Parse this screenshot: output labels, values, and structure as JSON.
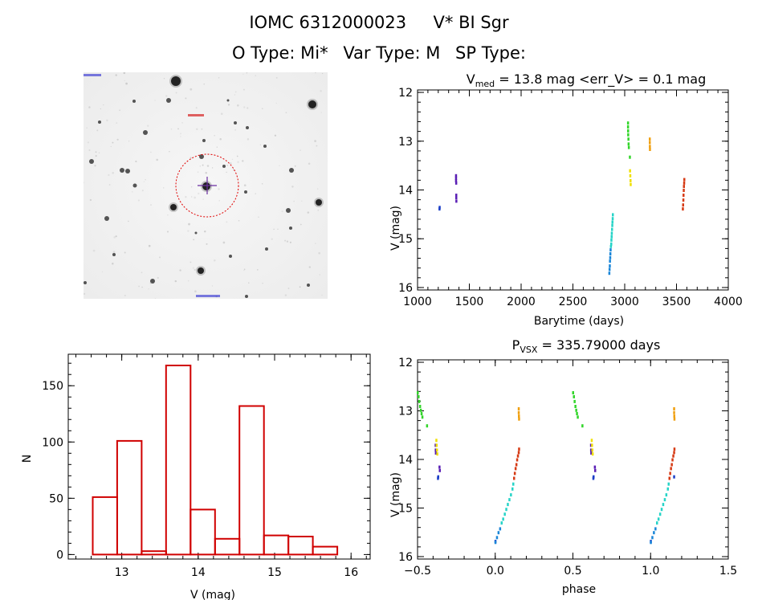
{
  "header": {
    "star_id": "IOMC 6312000023",
    "star_name": "V* BI Sgr",
    "o_type": "O Type: Mi*",
    "var_type": "Var Type: M",
    "sp_type": "SP Type:"
  },
  "image_panel": {
    "marker_colors": {
      "circle": "#e00000",
      "cross": "#6b2fa0",
      "label": "#d00000",
      "corner_text": "#0000cc"
    }
  },
  "chart_data": [
    {
      "type": "scatter",
      "title": "V_med = 13.8 mag <err_V> = 0.1 mag",
      "title_parts": {
        "v": "V",
        "sub": "med",
        "rest": " = 13.8 mag <err_V> = 0.1 mag"
      },
      "xlabel": "Barytime (days)",
      "ylabel": "V (mag)",
      "xlim": [
        1000,
        4000
      ],
      "ylim": [
        16.05,
        11.95
      ],
      "xticks": [
        "1000",
        "1500",
        "2000",
        "2500",
        "3000",
        "3500",
        "4000"
      ],
      "yticks": [
        "12",
        "13",
        "14",
        "15",
        "16"
      ],
      "series": [
        {
          "color": "#1c3fc8",
          "points": [
            [
              1210,
              14.38
            ],
            [
              1212,
              14.35
            ]
          ]
        },
        {
          "color": "#5a1fb5",
          "points": [
            [
              1370,
              13.7
            ],
            [
              1370,
              13.75
            ],
            [
              1370,
              13.8
            ],
            [
              1371,
              13.85
            ],
            [
              1372,
              14.1
            ],
            [
              1372,
              14.15
            ],
            [
              1373,
              14.22
            ]
          ]
        },
        {
          "color": "#1a86d8",
          "points": [
            [
              2850,
              15.7
            ],
            [
              2852,
              15.62
            ],
            [
              2854,
              15.55
            ],
            [
              2856,
              15.45
            ],
            [
              2858,
              15.38
            ],
            [
              2860,
              15.3
            ],
            [
              2862,
              15.22
            ]
          ]
        },
        {
          "color": "#27d4c8",
          "points": [
            [
              2865,
              15.15
            ],
            [
              2868,
              15.1
            ],
            [
              2870,
              15.02
            ],
            [
              2872,
              14.95
            ],
            [
              2874,
              14.88
            ],
            [
              2876,
              14.8
            ],
            [
              2878,
              14.72
            ],
            [
              2880,
              14.65
            ],
            [
              2882,
              14.58
            ],
            [
              2884,
              14.5
            ]
          ]
        },
        {
          "color": "#32d62a",
          "points": [
            [
              3030,
              12.62
            ],
            [
              3030,
              12.7
            ],
            [
              3031,
              12.78
            ],
            [
              3032,
              12.86
            ],
            [
              3034,
              12.95
            ],
            [
              3036,
              13.05
            ],
            [
              3038,
              13.12
            ],
            [
              3048,
              13.32
            ]
          ]
        },
        {
          "color": "#f0e000",
          "points": [
            [
              3050,
              13.6
            ],
            [
              3052,
              13.7
            ],
            [
              3054,
              13.8
            ],
            [
              3056,
              13.88
            ]
          ]
        },
        {
          "color": "#f0a010",
          "points": [
            [
              3240,
              12.95
            ],
            [
              3240,
              13.02
            ],
            [
              3241,
              13.1
            ],
            [
              3242,
              13.16
            ]
          ]
        },
        {
          "color": "#d63a14",
          "points": [
            [
              3560,
              14.38
            ],
            [
              3562,
              14.3
            ],
            [
              3564,
              14.2
            ],
            [
              3566,
              14.1
            ],
            [
              3568,
              14.0
            ],
            [
              3570,
              13.92
            ],
            [
              3572,
              13.85
            ],
            [
              3574,
              13.78
            ]
          ]
        }
      ]
    },
    {
      "type": "scatter",
      "title": "P_VSX = 335.79000 days",
      "title_parts": {
        "p": "P",
        "sub": "VSX",
        "rest": " = 335.79000 days"
      },
      "xlabel": "phase",
      "ylabel": "V (mag)",
      "xlim": [
        -0.5,
        1.5
      ],
      "ylim": [
        16.05,
        11.95
      ],
      "xticks": [
        "−0.5",
        "0.0",
        "0.5",
        "1.0",
        "1.5"
      ],
      "yticks": [
        "12",
        "13",
        "14",
        "15",
        "16"
      ],
      "series": [
        {
          "color": "#1c3fc8",
          "points": [
            [
              -0.37,
              14.38
            ],
            [
              -0.368,
              14.35
            ],
            [
              0.63,
              14.38
            ],
            [
              0.632,
              14.35
            ],
            [
              1.15,
              14.35
            ],
            [
              0.0,
              15.68
            ],
            [
              1.0,
              15.68
            ]
          ]
        },
        {
          "color": "#5a1fb5",
          "points": [
            [
              -0.385,
              13.7
            ],
            [
              -0.384,
              13.8
            ],
            [
              -0.383,
              13.86
            ],
            [
              -0.36,
              14.15
            ],
            [
              -0.358,
              14.22
            ],
            [
              0.615,
              13.7
            ],
            [
              0.616,
              13.8
            ],
            [
              0.617,
              13.86
            ],
            [
              0.64,
              14.15
            ],
            [
              0.642,
              14.22
            ]
          ]
        },
        {
          "color": "#1a86d8",
          "points": [
            [
              0.0,
              15.7
            ],
            [
              0.01,
              15.6
            ],
            [
              0.02,
              15.5
            ],
            [
              0.03,
              15.42
            ],
            [
              1.0,
              15.7
            ],
            [
              1.01,
              15.6
            ],
            [
              1.02,
              15.5
            ],
            [
              1.03,
              15.42
            ]
          ]
        },
        {
          "color": "#27d4c8",
          "points": [
            [
              0.04,
              15.3
            ],
            [
              0.05,
              15.22
            ],
            [
              0.06,
              15.12
            ],
            [
              0.07,
              15.02
            ],
            [
              0.08,
              14.92
            ],
            [
              0.09,
              14.82
            ],
            [
              0.1,
              14.72
            ],
            [
              0.11,
              14.6
            ],
            [
              0.115,
              14.5
            ],
            [
              1.04,
              15.3
            ],
            [
              1.05,
              15.22
            ],
            [
              1.06,
              15.12
            ],
            [
              1.07,
              15.02
            ],
            [
              1.08,
              14.92
            ],
            [
              1.09,
              14.82
            ],
            [
              1.1,
              14.72
            ],
            [
              1.11,
              14.6
            ],
            [
              1.115,
              14.5
            ]
          ]
        },
        {
          "color": "#32d62a",
          "points": [
            [
              -0.5,
              12.62
            ],
            [
              -0.495,
              12.7
            ],
            [
              -0.49,
              12.8
            ],
            [
              -0.485,
              12.9
            ],
            [
              -0.48,
              12.98
            ],
            [
              -0.475,
              13.05
            ],
            [
              -0.47,
              13.12
            ],
            [
              -0.44,
              13.3
            ],
            [
              0.5,
              12.62
            ],
            [
              0.505,
              12.7
            ],
            [
              0.51,
              12.8
            ],
            [
              0.515,
              12.9
            ],
            [
              0.52,
              12.98
            ],
            [
              0.525,
              13.05
            ],
            [
              0.53,
              13.12
            ],
            [
              0.56,
              13.3
            ]
          ]
        },
        {
          "color": "#f0e000",
          "points": [
            [
              -0.38,
              13.6
            ],
            [
              -0.378,
              13.7
            ],
            [
              -0.376,
              13.8
            ],
            [
              -0.374,
              13.88
            ],
            [
              0.62,
              13.6
            ],
            [
              0.622,
              13.7
            ],
            [
              0.624,
              13.8
            ],
            [
              0.626,
              13.88
            ]
          ]
        },
        {
          "color": "#f0a010",
          "points": [
            [
              0.15,
              12.95
            ],
            [
              0.15,
              13.03
            ],
            [
              0.151,
              13.1
            ],
            [
              0.152,
              13.16
            ],
            [
              1.15,
              12.95
            ],
            [
              1.15,
              13.03
            ],
            [
              1.151,
              13.1
            ],
            [
              1.152,
              13.16
            ]
          ]
        },
        {
          "color": "#d63a14",
          "points": [
            [
              0.12,
              14.38
            ],
            [
              0.125,
              14.28
            ],
            [
              0.13,
              14.18
            ],
            [
              0.135,
              14.1
            ],
            [
              0.14,
              14.0
            ],
            [
              0.145,
              13.92
            ],
            [
              0.15,
              13.85
            ],
            [
              0.152,
              13.78
            ],
            [
              1.12,
              14.38
            ],
            [
              1.125,
              14.28
            ],
            [
              1.13,
              14.18
            ],
            [
              1.135,
              14.1
            ],
            [
              1.14,
              14.0
            ],
            [
              1.145,
              13.92
            ],
            [
              1.15,
              13.85
            ],
            [
              1.152,
              13.78
            ]
          ]
        }
      ]
    },
    {
      "type": "bar",
      "title": "",
      "xlabel": "V (mag)",
      "ylabel": "N",
      "xlim": [
        12.3,
        16.25
      ],
      "ylim": [
        -4,
        178
      ],
      "xticks": [
        "13",
        "14",
        "15",
        "16"
      ],
      "yticks": [
        "0",
        "50",
        "100",
        "150"
      ],
      "bar_color": "#d00000",
      "bins": [
        {
          "x0": 12.62,
          "x1": 12.94,
          "value": 51
        },
        {
          "x0": 12.94,
          "x1": 13.26,
          "value": 101
        },
        {
          "x0": 13.26,
          "x1": 13.58,
          "value": 3
        },
        {
          "x0": 13.58,
          "x1": 13.9,
          "value": 168
        },
        {
          "x0": 13.9,
          "x1": 14.22,
          "value": 40
        },
        {
          "x0": 14.22,
          "x1": 14.54,
          "value": 14
        },
        {
          "x0": 14.54,
          "x1": 14.86,
          "value": 132
        },
        {
          "x0": 14.86,
          "x1": 15.18,
          "value": 17
        },
        {
          "x0": 15.18,
          "x1": 15.5,
          "value": 16
        },
        {
          "x0": 15.5,
          "x1": 15.82,
          "value": 7
        }
      ]
    }
  ]
}
